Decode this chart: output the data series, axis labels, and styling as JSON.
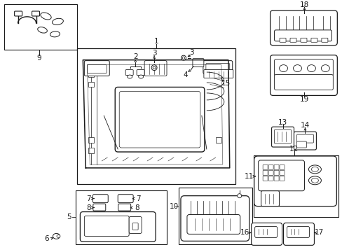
{
  "bg_color": "#ffffff",
  "lc": "#1a1a1a",
  "fig_w": 4.89,
  "fig_h": 3.6,
  "dpi": 100,
  "fs": 7.5
}
